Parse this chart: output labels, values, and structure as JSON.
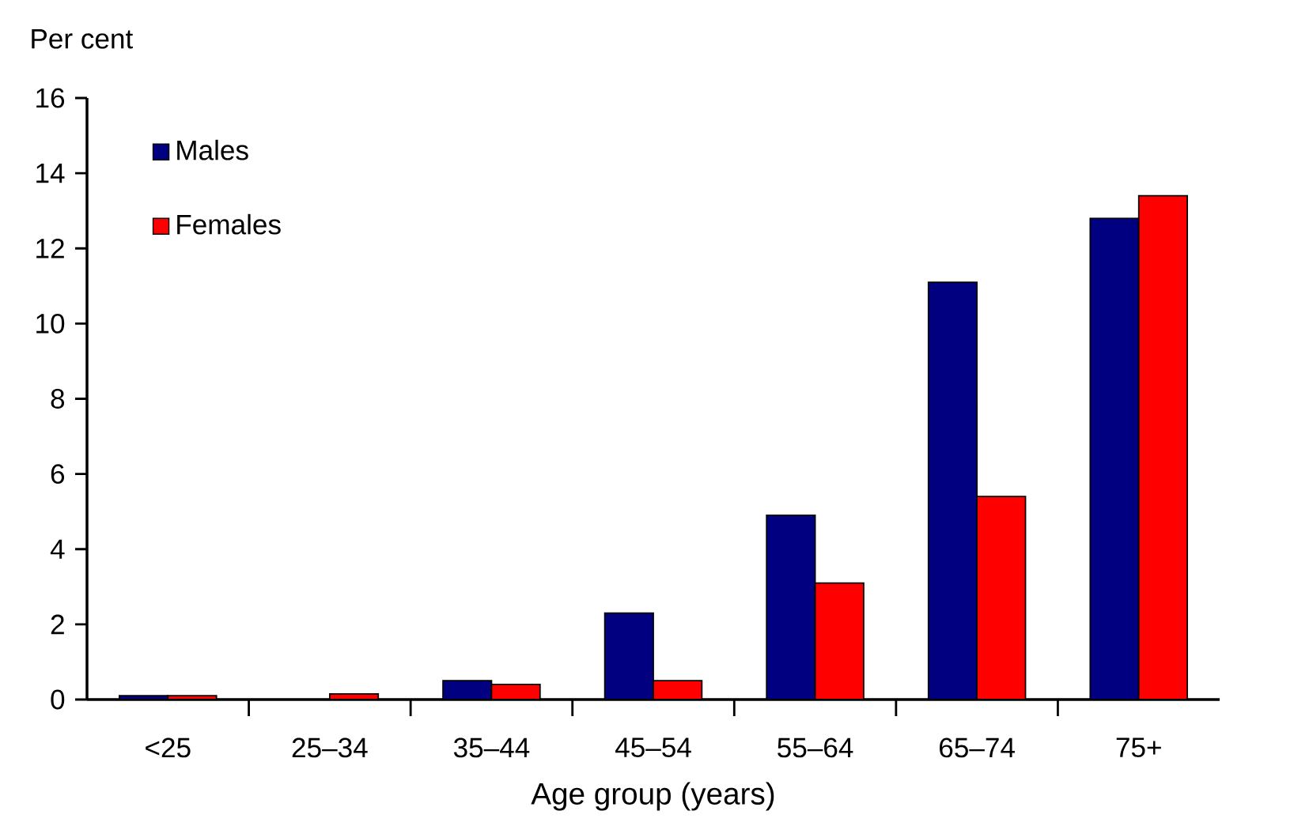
{
  "chart_data": {
    "type": "bar",
    "xlabel": "Age group (years)",
    "ylabel": "Per cent",
    "categories": [
      "<25",
      "25–34",
      "35–44",
      "45–54",
      "55–64",
      "65–74",
      "75+"
    ],
    "series": [
      {
        "name": "Males",
        "color": "#000080",
        "values": [
          0.1,
          null,
          0.5,
          2.3,
          4.9,
          11.1,
          12.8
        ]
      },
      {
        "name": "Females",
        "color": "#ff0000",
        "values": [
          0.1,
          0.15,
          0.4,
          0.5,
          3.1,
          5.4,
          13.4
        ]
      }
    ],
    "ylim": [
      0,
      16
    ],
    "yticks": [
      0,
      2,
      4,
      6,
      8,
      10,
      12,
      14,
      16
    ],
    "legend": "top left"
  }
}
